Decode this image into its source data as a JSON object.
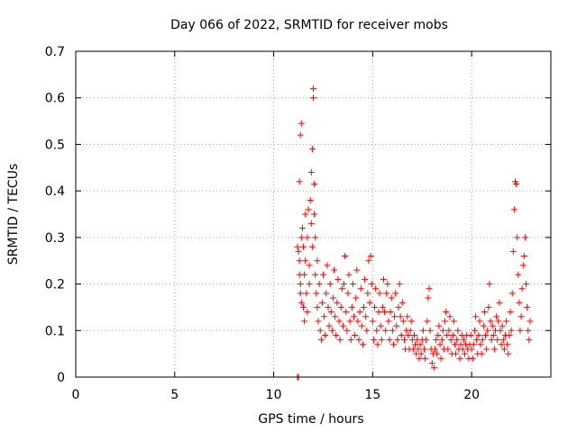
{
  "chart_data": {
    "type": "scatter",
    "title": "Day 066 of 2022, SRMTID for receiver mobs",
    "xlabel": "GPS time / hours",
    "ylabel": "SRMTID / TECUs",
    "xlim": [
      0,
      24
    ],
    "ylim": [
      0,
      0.7
    ],
    "xticks": [
      0,
      5,
      10,
      15,
      20
    ],
    "xtick_labels": [
      "0",
      "5",
      "10",
      "15",
      "20"
    ],
    "yticks": [
      0,
      0.1,
      0.2,
      0.3,
      0.4,
      0.5,
      0.6,
      0.7
    ],
    "ytick_labels": [
      "0",
      "0.1",
      "0.2",
      "0.3",
      "0.4",
      "0.5",
      "0.6",
      "0.7"
    ],
    "grid": true,
    "marker": "+",
    "color": "#ff0000",
    "series": [
      {
        "name": "mobs",
        "points": [
          [
            11.2,
            0.0
          ],
          [
            11.25,
            0.0
          ],
          [
            11.2,
            0.28
          ],
          [
            11.25,
            0.27
          ],
          [
            11.3,
            0.25
          ],
          [
            11.3,
            0.22
          ],
          [
            11.35,
            0.2
          ],
          [
            11.35,
            0.18
          ],
          [
            11.4,
            0.16
          ],
          [
            11.4,
            0.3
          ],
          [
            11.3,
            0.42
          ],
          [
            11.35,
            0.52
          ],
          [
            11.4,
            0.545
          ],
          [
            11.45,
            0.32
          ],
          [
            11.5,
            0.28
          ],
          [
            11.5,
            0.15
          ],
          [
            11.55,
            0.12
          ],
          [
            11.55,
            0.22
          ],
          [
            11.6,
            0.35
          ],
          [
            11.6,
            0.25
          ],
          [
            11.65,
            0.18
          ],
          [
            11.7,
            0.14
          ],
          [
            11.7,
            0.3
          ],
          [
            11.75,
            0.36
          ],
          [
            11.8,
            0.24
          ],
          [
            11.8,
            0.2
          ],
          [
            11.85,
            0.38
          ],
          [
            11.9,
            0.44
          ],
          [
            11.9,
            0.33
          ],
          [
            11.95,
            0.28
          ],
          [
            11.95,
            0.49
          ],
          [
            12.0,
            0.6
          ],
          [
            12.0,
            0.62
          ],
          [
            12.05,
            0.415
          ],
          [
            12.05,
            0.35
          ],
          [
            12.1,
            0.3
          ],
          [
            12.1,
            0.22
          ],
          [
            12.15,
            0.18
          ],
          [
            12.2,
            0.15
          ],
          [
            12.2,
            0.25
          ],
          [
            12.25,
            0.12
          ],
          [
            12.3,
            0.2
          ],
          [
            12.35,
            0.1
          ],
          [
            12.4,
            0.08
          ],
          [
            12.45,
            0.16
          ],
          [
            12.5,
            0.22
          ],
          [
            12.55,
            0.13
          ],
          [
            12.6,
            0.09
          ],
          [
            12.65,
            0.18
          ],
          [
            12.7,
            0.24
          ],
          [
            12.75,
            0.15
          ],
          [
            12.8,
            0.11
          ],
          [
            12.85,
            0.2
          ],
          [
            12.9,
            0.14
          ],
          [
            12.95,
            0.1
          ],
          [
            13.0,
            0.17
          ],
          [
            13.05,
            0.23
          ],
          [
            13.1,
            0.13
          ],
          [
            13.15,
            0.09
          ],
          [
            13.2,
            0.16
          ],
          [
            13.25,
            0.21
          ],
          [
            13.3,
            0.12
          ],
          [
            13.35,
            0.08
          ],
          [
            13.4,
            0.15
          ],
          [
            13.45,
            0.19
          ],
          [
            13.5,
            0.11
          ],
          [
            13.55,
            0.2
          ],
          [
            13.6,
            0.26
          ],
          [
            13.65,
            0.14
          ],
          [
            13.7,
            0.1
          ],
          [
            13.75,
            0.18
          ],
          [
            13.8,
            0.22
          ],
          [
            13.85,
            0.12
          ],
          [
            13.9,
            0.08
          ],
          [
            13.95,
            0.15
          ],
          [
            14.0,
            0.2
          ],
          [
            14.05,
            0.13
          ],
          [
            14.1,
            0.09
          ],
          [
            14.15,
            0.17
          ],
          [
            14.2,
            0.23
          ],
          [
            14.25,
            0.12
          ],
          [
            14.3,
            0.08
          ],
          [
            14.35,
            0.14
          ],
          [
            14.4,
            0.19
          ],
          [
            14.45,
            0.11
          ],
          [
            14.5,
            0.07
          ],
          [
            14.55,
            0.15
          ],
          [
            14.6,
            0.21
          ],
          [
            14.65,
            0.13
          ],
          [
            14.7,
            0.1
          ],
          [
            14.75,
            0.18
          ],
          [
            14.8,
            0.25
          ],
          [
            14.85,
            0.16
          ],
          [
            14.9,
            0.26
          ],
          [
            14.95,
            0.2
          ],
          [
            15.0,
            0.12
          ],
          [
            15.05,
            0.08
          ],
          [
            15.1,
            0.15
          ],
          [
            15.15,
            0.19
          ],
          [
            15.2,
            0.1
          ],
          [
            15.25,
            0.07
          ],
          [
            15.3,
            0.14
          ],
          [
            15.35,
            0.18
          ],
          [
            15.4,
            0.11
          ],
          [
            15.45,
            0.08
          ],
          [
            15.5,
            0.15
          ],
          [
            15.55,
            0.21
          ],
          [
            15.6,
            0.14
          ],
          [
            15.65,
            0.1
          ],
          [
            15.7,
            0.18
          ],
          [
            15.75,
            0.2
          ],
          [
            15.8,
            0.12
          ],
          [
            15.85,
            0.08
          ],
          [
            15.9,
            0.14
          ],
          [
            15.95,
            0.17
          ],
          [
            16.0,
            0.1
          ],
          [
            16.05,
            0.07
          ],
          [
            16.1,
            0.13
          ],
          [
            16.15,
            0.18
          ],
          [
            16.2,
            0.11
          ],
          [
            16.25,
            0.08
          ],
          [
            16.3,
            0.15
          ],
          [
            16.35,
            0.2
          ],
          [
            16.4,
            0.13
          ],
          [
            16.45,
            0.09
          ],
          [
            16.5,
            0.16
          ],
          [
            16.55,
            0.12
          ],
          [
            16.6,
            0.08
          ],
          [
            16.65,
            0.06
          ],
          [
            16.7,
            0.1
          ],
          [
            16.75,
            0.13
          ],
          [
            16.8,
            0.09
          ],
          [
            16.85,
            0.06
          ],
          [
            16.9,
            0.1
          ],
          [
            16.95,
            0.12
          ],
          [
            17.0,
            0.08
          ],
          [
            17.05,
            0.06
          ],
          [
            17.1,
            0.09
          ],
          [
            17.15,
            0.07
          ],
          [
            17.2,
            0.05
          ],
          [
            17.25,
            0.08
          ],
          [
            17.3,
            0.06
          ],
          [
            17.35,
            0.04
          ],
          [
            17.4,
            0.07
          ],
          [
            17.45,
            0.05
          ],
          [
            17.5,
            0.08
          ],
          [
            17.55,
            0.1
          ],
          [
            17.6,
            0.06
          ],
          [
            17.65,
            0.04
          ],
          [
            17.7,
            0.08
          ],
          [
            17.75,
            0.12
          ],
          [
            17.8,
            0.17
          ],
          [
            17.85,
            0.19
          ],
          [
            17.9,
            0.1
          ],
          [
            17.95,
            0.06
          ],
          [
            18.0,
            0.03
          ],
          [
            18.05,
            0.05
          ],
          [
            18.1,
            0.02
          ],
          [
            18.15,
            0.06
          ],
          [
            18.2,
            0.08
          ],
          [
            18.25,
            0.05
          ],
          [
            18.3,
            0.09
          ],
          [
            18.35,
            0.11
          ],
          [
            18.4,
            0.07
          ],
          [
            18.45,
            0.04
          ],
          [
            18.5,
            0.08
          ],
          [
            18.55,
            0.1
          ],
          [
            18.6,
            0.06
          ],
          [
            18.65,
            0.12
          ],
          [
            18.7,
            0.14
          ],
          [
            18.75,
            0.09
          ],
          [
            18.8,
            0.06
          ],
          [
            18.85,
            0.1
          ],
          [
            18.9,
            0.13
          ],
          [
            18.95,
            0.08
          ],
          [
            19.0,
            0.05
          ],
          [
            19.05,
            0.09
          ],
          [
            19.1,
            0.12
          ],
          [
            19.15,
            0.07
          ],
          [
            19.2,
            0.05
          ],
          [
            19.25,
            0.08
          ],
          [
            19.3,
            0.1
          ],
          [
            19.35,
            0.06
          ],
          [
            19.4,
            0.04
          ],
          [
            19.45,
            0.07
          ],
          [
            19.5,
            0.09
          ],
          [
            19.55,
            0.06
          ],
          [
            19.6,
            0.08
          ],
          [
            19.65,
            0.05
          ],
          [
            19.7,
            0.07
          ],
          [
            19.75,
            0.09
          ],
          [
            19.8,
            0.06
          ],
          [
            19.85,
            0.04
          ],
          [
            19.9,
            0.07
          ],
          [
            19.95,
            0.09
          ],
          [
            20.0,
            0.06
          ],
          [
            20.05,
            0.04
          ],
          [
            20.1,
            0.07
          ],
          [
            20.15,
            0.1
          ],
          [
            20.2,
            0.13
          ],
          [
            20.25,
            0.08
          ],
          [
            20.3,
            0.05
          ],
          [
            20.35,
            0.09
          ],
          [
            20.4,
            0.12
          ],
          [
            20.45,
            0.07
          ],
          [
            20.5,
            0.05
          ],
          [
            20.55,
            0.08
          ],
          [
            20.6,
            0.11
          ],
          [
            20.65,
            0.14
          ],
          [
            20.7,
            0.09
          ],
          [
            20.75,
            0.06
          ],
          [
            20.8,
            0.1
          ],
          [
            20.85,
            0.15
          ],
          [
            20.9,
            0.2
          ],
          [
            20.95,
            0.12
          ],
          [
            21.0,
            0.08
          ],
          [
            21.05,
            0.11
          ],
          [
            21.1,
            0.09
          ],
          [
            21.15,
            0.06
          ],
          [
            21.2,
            0.1
          ],
          [
            21.25,
            0.13
          ],
          [
            21.3,
            0.08
          ],
          [
            21.35,
            0.12
          ],
          [
            21.4,
            0.16
          ],
          [
            21.45,
            0.1
          ],
          [
            21.5,
            0.07
          ],
          [
            21.55,
            0.11
          ],
          [
            21.6,
            0.08
          ],
          [
            21.65,
            0.06
          ],
          [
            21.7,
            0.09
          ],
          [
            21.75,
            0.12
          ],
          [
            21.8,
            0.07
          ],
          [
            21.85,
            0.05
          ],
          [
            21.9,
            0.09
          ],
          [
            21.95,
            0.14
          ],
          [
            22.0,
            0.1
          ],
          [
            22.05,
            0.18
          ],
          [
            22.1,
            0.27
          ],
          [
            22.15,
            0.36
          ],
          [
            22.2,
            0.42
          ],
          [
            22.25,
            0.415
          ],
          [
            22.3,
            0.3
          ],
          [
            22.35,
            0.22
          ],
          [
            22.4,
            0.16
          ],
          [
            22.45,
            0.1
          ],
          [
            22.5,
            0.13
          ],
          [
            22.55,
            0.19
          ],
          [
            22.6,
            0.24
          ],
          [
            22.65,
            0.26
          ],
          [
            22.7,
            0.3
          ],
          [
            22.75,
            0.2
          ],
          [
            22.8,
            0.15
          ],
          [
            22.85,
            0.1
          ],
          [
            22.9,
            0.08
          ],
          [
            22.95,
            0.12
          ]
        ]
      }
    ]
  }
}
